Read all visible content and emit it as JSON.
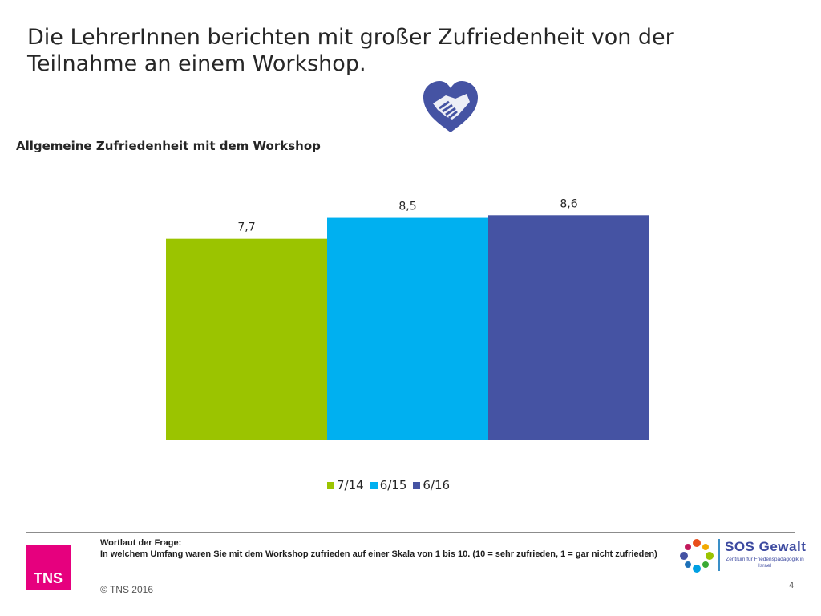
{
  "slide": {
    "title": "Die LehrerInnen berichten mit großer Zufriedenheit von der Teilnahme an einem Workshop.",
    "icon": "handshake-heart-icon"
  },
  "chart_data": {
    "type": "bar",
    "title": "Allgemeine Zufriedenheit mit dem Workshop",
    "categories": [
      ""
    ],
    "series": [
      {
        "name": "7/14",
        "values": [
          7.7
        ],
        "label": "7,7",
        "color": "#9bc400"
      },
      {
        "name": "6/15",
        "values": [
          8.5
        ],
        "label": "8,5",
        "color": "#00b0f0"
      },
      {
        "name": "6/16",
        "values": [
          8.6
        ],
        "label": "8,6",
        "color": "#4553a3"
      }
    ],
    "legend": "bottom",
    "grid": false
  },
  "footer": {
    "question_heading": "Wortlaut der Frage:",
    "question_text": "In welchem Umfang waren Sie mit dem Workshop zufrieden  auf einer Skala von 1 bis 10. (10 = sehr zufrieden, 1 = gar nicht zufrieden)",
    "copyright": "© TNS 2016",
    "page_number": "4",
    "tns_logo_text": "TNS",
    "sos_title": "SOS Gewalt",
    "sos_subtitle": "Zentrum für Friedenspädagogik in Israel"
  }
}
